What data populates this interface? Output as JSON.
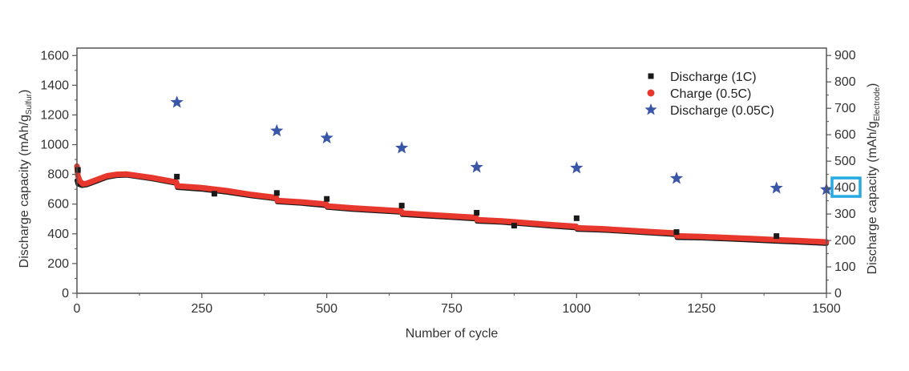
{
  "chart_data": {
    "type": "scatter",
    "xlabel": "Number of cycle",
    "ylabel_left": {
      "main": "Discharge capacity (mAh/g",
      "sub": "Sulfur",
      "close": ")"
    },
    "ylabel_right": {
      "main": "Discharge capacity (mAh/g",
      "sub": "Electrode",
      "close": ")"
    },
    "xlim": [
      0,
      1500
    ],
    "ylim_left": [
      0,
      1650
    ],
    "ylim_right": [
      0,
      928
    ],
    "x_ticks": [
      0,
      250,
      500,
      750,
      1000,
      1250,
      1500
    ],
    "y_ticks_left": [
      0,
      200,
      400,
      600,
      800,
      1000,
      1200,
      1400,
      1600
    ],
    "y_ticks_right": [
      0,
      100,
      200,
      300,
      400,
      500,
      600,
      700,
      800,
      900
    ],
    "highlighted_right_tick": "400",
    "legend_position": "top-right",
    "colors": {
      "discharge_1c": "#1a1a1a",
      "charge_05c": "#e8372c",
      "discharge_005c": "#3a57a7",
      "highlight_box": "#27a9e1"
    },
    "series": [
      {
        "name": "Discharge (1C)",
        "marker": "square",
        "axis": "left",
        "style": "dense-band",
        "anchors": [
          [
            0,
            760
          ],
          [
            2,
            735
          ],
          [
            10,
            725
          ],
          [
            20,
            730
          ],
          [
            40,
            755
          ],
          [
            60,
            780
          ],
          [
            80,
            792
          ],
          [
            100,
            795
          ],
          [
            150,
            770
          ],
          [
            199,
            740
          ],
          [
            201,
            712
          ],
          [
            250,
            700
          ],
          [
            300,
            680
          ],
          [
            350,
            655
          ],
          [
            399,
            635
          ],
          [
            401,
            615
          ],
          [
            450,
            605
          ],
          [
            499,
            590
          ],
          [
            501,
            578
          ],
          [
            550,
            565
          ],
          [
            600,
            555
          ],
          [
            649,
            545
          ],
          [
            651,
            530
          ],
          [
            700,
            520
          ],
          [
            750,
            510
          ],
          [
            799,
            500
          ],
          [
            801,
            485
          ],
          [
            850,
            478
          ],
          [
            900,
            465
          ],
          [
            950,
            452
          ],
          [
            999,
            440
          ],
          [
            1001,
            430
          ],
          [
            1050,
            425
          ],
          [
            1100,
            415
          ],
          [
            1150,
            405
          ],
          [
            1199,
            395
          ],
          [
            1201,
            375
          ],
          [
            1250,
            372
          ],
          [
            1300,
            365
          ],
          [
            1350,
            358
          ],
          [
            1400,
            350
          ],
          [
            1450,
            343
          ],
          [
            1500,
            335
          ]
        ],
        "markers": [
          [
            2,
            830
          ],
          [
            200,
            785
          ],
          [
            275,
            670
          ],
          [
            400,
            675
          ],
          [
            500,
            635
          ],
          [
            650,
            590
          ],
          [
            800,
            542
          ],
          [
            875,
            455
          ],
          [
            1000,
            505
          ],
          [
            1200,
            412
          ],
          [
            1400,
            385
          ]
        ]
      },
      {
        "name": "Charge (0.5C)",
        "marker": "circle",
        "axis": "left",
        "style": "dense-band",
        "anchors": [
          [
            0,
            855
          ],
          [
            2,
            790
          ],
          [
            6,
            755
          ],
          [
            12,
            735
          ],
          [
            20,
            740
          ],
          [
            40,
            765
          ],
          [
            60,
            790
          ],
          [
            80,
            800
          ],
          [
            100,
            802
          ],
          [
            150,
            778
          ],
          [
            199,
            748
          ],
          [
            201,
            722
          ],
          [
            250,
            710
          ],
          [
            300,
            690
          ],
          [
            350,
            664
          ],
          [
            399,
            644
          ],
          [
            401,
            624
          ],
          [
            450,
            614
          ],
          [
            499,
            600
          ],
          [
            501,
            587
          ],
          [
            550,
            574
          ],
          [
            600,
            564
          ],
          [
            649,
            554
          ],
          [
            651,
            540
          ],
          [
            700,
            530
          ],
          [
            750,
            520
          ],
          [
            799,
            510
          ],
          [
            801,
            495
          ],
          [
            850,
            487
          ],
          [
            900,
            474
          ],
          [
            950,
            461
          ],
          [
            999,
            450
          ],
          [
            1001,
            440
          ],
          [
            1050,
            434
          ],
          [
            1100,
            424
          ],
          [
            1150,
            414
          ],
          [
            1199,
            405
          ],
          [
            1201,
            386
          ],
          [
            1250,
            382
          ],
          [
            1300,
            375
          ],
          [
            1350,
            368
          ],
          [
            1400,
            360
          ],
          [
            1450,
            353
          ],
          [
            1500,
            345
          ]
        ]
      },
      {
        "name": "Discharge (0.05C)",
        "marker": "star",
        "axis": "left",
        "points": [
          [
            200,
            1285
          ],
          [
            400,
            1093
          ],
          [
            500,
            1045
          ],
          [
            650,
            978
          ],
          [
            800,
            848
          ],
          [
            1000,
            843
          ],
          [
            1200,
            773
          ],
          [
            1400,
            708
          ],
          [
            1500,
            698
          ]
        ]
      }
    ]
  }
}
